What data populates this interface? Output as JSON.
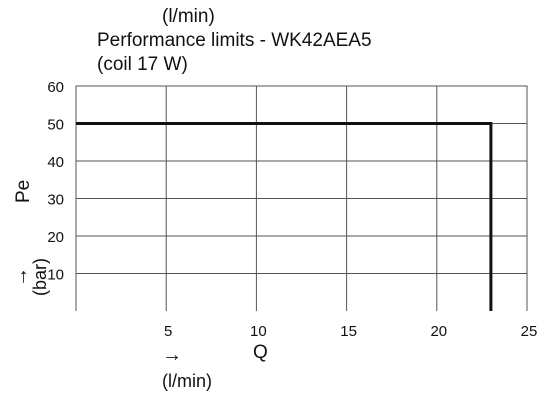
{
  "chart_data": {
    "type": "line",
    "title_top": "(l/min)",
    "title": "Performance limits - WK42AEA5",
    "subtitle": "(coil 17 W)",
    "xlabel": "Q",
    "xlabel_unit": "(l/min)",
    "xlabel_arrow": "→",
    "ylabel": "Pe",
    "ylabel_unit": "(bar)",
    "ylabel_arrow": "→",
    "xlim": [
      0,
      25
    ],
    "ylim": [
      0,
      60
    ],
    "x_ticks": [
      5,
      10,
      15,
      20,
      25
    ],
    "y_ticks": [
      10,
      20,
      30,
      40,
      50,
      60
    ],
    "grid": true,
    "series": [
      {
        "x": [
          0,
          23,
          23
        ],
        "y": [
          50,
          50,
          0
        ]
      }
    ],
    "line_color": "#111111",
    "grid_color": "#555555"
  }
}
